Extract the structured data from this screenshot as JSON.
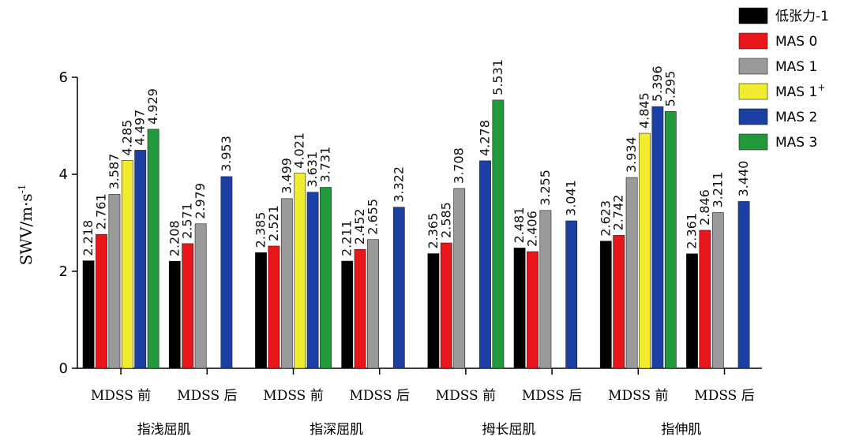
{
  "chart_data": {
    "type": "bar",
    "ylabel": "SWV/m·s",
    "ylabel_sup": "-1",
    "ylim": [
      0,
      6
    ],
    "yticks": [
      0,
      2,
      4,
      6
    ],
    "grid": false,
    "legend_position": "top-right",
    "series": [
      {
        "name": "低张力-1",
        "name_sup": "",
        "color": "#000000"
      },
      {
        "name": "MAS 0",
        "name_sup": "",
        "color": "#e8161b"
      },
      {
        "name": "MAS 1",
        "name_sup": "",
        "color": "#9a9a9c"
      },
      {
        "name": "MAS 1",
        "name_sup": "+",
        "color": "#f2ec30"
      },
      {
        "name": "MAS 2",
        "name_sup": "",
        "color": "#1c3fa3"
      },
      {
        "name": "MAS 3",
        "name_sup": "",
        "color": "#229a3c"
      }
    ],
    "groups": [
      {
        "label": "指浅屈肌",
        "categories": [
          {
            "label": "MDSS 前",
            "values": [
              2.218,
              2.761,
              3.587,
              4.285,
              4.497,
              4.929
            ],
            "labels": [
              "2.218",
              "2.761",
              "3.587",
              "4.285",
              "4.497",
              "4.929"
            ]
          },
          {
            "label": "MDSS 后",
            "values": [
              2.208,
              2.571,
              2.979,
              null,
              3.953,
              null
            ],
            "labels": [
              "2.208",
              "2.571",
              "2.979",
              "",
              "3.953",
              ""
            ]
          }
        ]
      },
      {
        "label": "指深屈肌",
        "categories": [
          {
            "label": "MDSS 前",
            "values": [
              2.385,
              2.521,
              3.499,
              4.021,
              3.631,
              3.731
            ],
            "labels": [
              "2.385",
              "2.521",
              "3.499",
              "4.021",
              "3.631",
              "3.731"
            ]
          },
          {
            "label": "MDSS 后",
            "values": [
              2.211,
              2.452,
              2.655,
              null,
              3.322,
              null
            ],
            "labels": [
              "2.211",
              "2.452",
              "2.655",
              "",
              "3.322",
              ""
            ]
          }
        ]
      },
      {
        "label": "拇长屈肌",
        "categories": [
          {
            "label": "MDSS 前",
            "values": [
              2.365,
              2.585,
              3.708,
              null,
              4.278,
              5.531
            ],
            "labels": [
              "2.365",
              "2.585",
              "3.708",
              "",
              "4.278",
              "5.531"
            ]
          },
          {
            "label": "MDSS 后",
            "values": [
              2.481,
              2.406,
              3.255,
              null,
              3.041,
              null
            ],
            "labels": [
              "2.481",
              "2.406",
              "3.255",
              "",
              "3.041",
              ""
            ]
          }
        ]
      },
      {
        "label": "指伸肌",
        "categories": [
          {
            "label": "MDSS 前",
            "values": [
              2.623,
              2.742,
              3.934,
              4.845,
              5.396,
              5.295
            ],
            "labels": [
              "2.623",
              "2.742",
              "3.934",
              "4.845",
              "5.396",
              "5.295"
            ]
          },
          {
            "label": "MDSS 后",
            "values": [
              2.361,
              2.846,
              3.211,
              null,
              3.44,
              null
            ],
            "labels": [
              "2.361",
              "2.846",
              "3.211",
              "",
              "3.440",
              ""
            ]
          }
        ]
      }
    ]
  }
}
